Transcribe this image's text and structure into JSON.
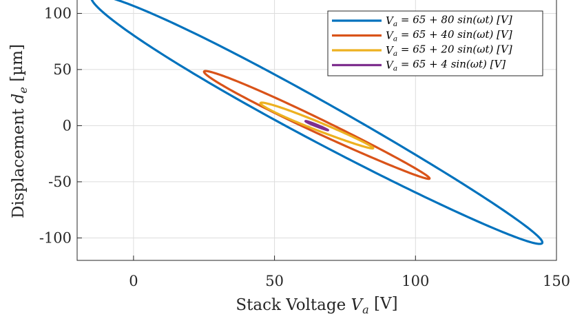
{
  "chart_data": {
    "type": "line",
    "xlabel": "Stack Voltage V_a [V]",
    "ylabel": "Displacement d_e [µm]",
    "xlim": [
      -20,
      150
    ],
    "ylim": [
      -120,
      115
    ],
    "xticks": [
      0,
      50,
      100,
      150
    ],
    "yticks": [
      -100,
      -50,
      0,
      50,
      100
    ],
    "xtick_labels": [
      "0",
      "50",
      "100",
      "150"
    ],
    "ytick_labels": [
      "-100",
      "-50",
      "0",
      "50",
      "100"
    ],
    "grid": true,
    "legend_position": "top-right",
    "series": [
      {
        "name": "V_a = 65 + 80 sin(ωt) [V]",
        "color": "#0072BD",
        "offset": 65,
        "amplitude": 80,
        "x_min": -15,
        "x_max": 145,
        "y_at_min": 114,
        "y_at_max": -104,
        "loop_half_width": 20
      },
      {
        "name": "V_a = 65 + 40 sin(ωt) [V]",
        "color": "#D95319",
        "offset": 65,
        "amplitude": 40,
        "x_min": 25,
        "x_max": 105,
        "y_at_min": 48,
        "y_at_max": -47,
        "loop_half_width": 7
      },
      {
        "name": "V_a = 65 + 20 sin(ωt) [V]",
        "color": "#EDB120",
        "offset": 65,
        "amplitude": 20,
        "x_min": 45,
        "x_max": 85,
        "y_at_min": 20,
        "y_at_max": -20,
        "loop_half_width": 4
      },
      {
        "name": "V_a = 65 + 4 sin(ωt) [V]",
        "color": "#7E2F8E",
        "offset": 65,
        "amplitude": 4,
        "x_min": 61,
        "x_max": 69,
        "y_at_min": 4,
        "y_at_max": -4,
        "loop_half_width": 0.8
      }
    ]
  }
}
